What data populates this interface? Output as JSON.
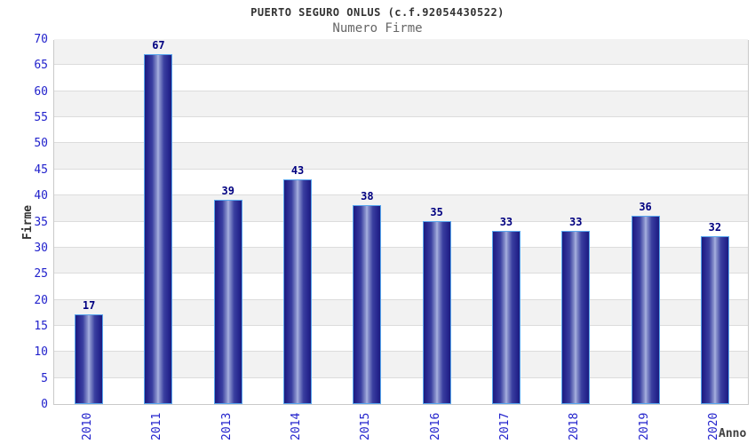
{
  "chart_data": {
    "type": "bar",
    "title": "PUERTO SEGURO ONLUS (c.f.92054430522)",
    "subtitle": "Numero Firme",
    "xlabel": "Anno",
    "ylabel": "Firme",
    "categories": [
      "2010",
      "2011",
      "2013",
      "2014",
      "2015",
      "2016",
      "2017",
      "2018",
      "2019",
      "2020"
    ],
    "values": [
      17,
      67,
      39,
      43,
      38,
      35,
      33,
      33,
      36,
      32
    ],
    "ylim": [
      0,
      70
    ],
    "ytick_step": 5,
    "grid": "horizontal alternating bands with gridlines every 5",
    "legend": "none",
    "bar_value_labels": [
      "17",
      "67",
      "39",
      "43",
      "38",
      "35",
      "33",
      "33",
      "36",
      "32"
    ],
    "colors": {
      "bar_dark": "#1c1c7e",
      "bar_mid": "#3a3fa0",
      "bar_highlight": "#aab3e2",
      "bar_border": "#58a6ee",
      "tick_label": "#2222cc",
      "value_label": "#000080",
      "band_gray": "#f2f2f2",
      "grid_line": "#dcdcdc",
      "plot_border": "#c9c9c9",
      "title": "#333333",
      "subtitle": "#666666",
      "axis_label": "#404040",
      "background": "#ffffff"
    }
  }
}
